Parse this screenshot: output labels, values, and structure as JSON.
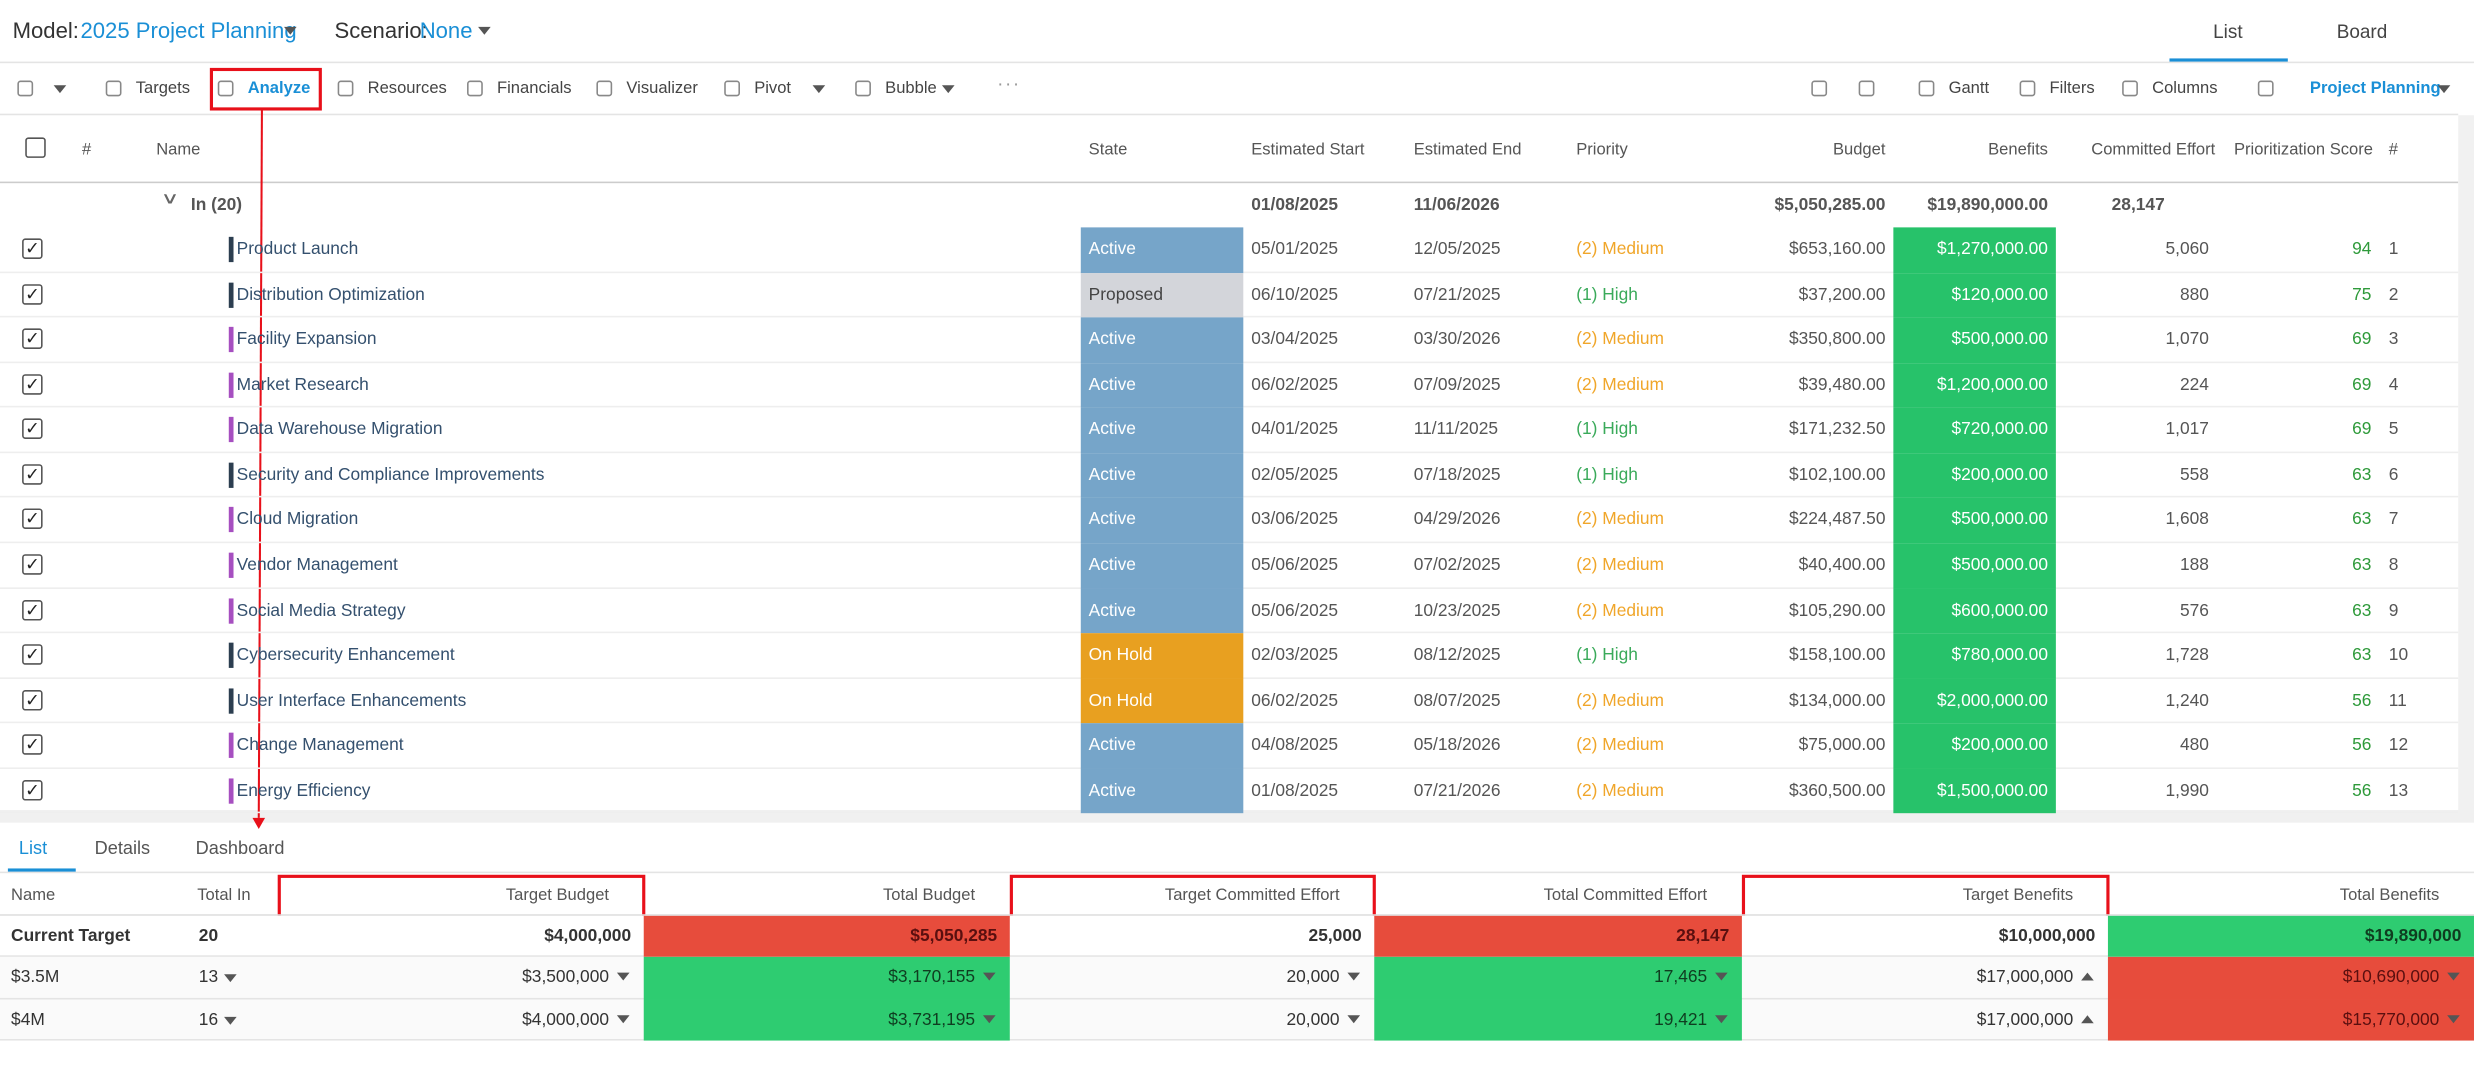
{
  "header": {
    "model_label": "Model:",
    "model": "2025 Project Planning",
    "scenario_label": "Scenario:",
    "scenario": "None",
    "views": [
      "List",
      "Board"
    ]
  },
  "toolbar": {
    "items": [
      "Targets",
      "Analyze",
      "Resources",
      "Financials",
      "Visualizer",
      "Pivot",
      "Bubble"
    ],
    "right_items": [
      "Gantt",
      "Filters",
      "Columns"
    ],
    "profile": "Project Planning"
  },
  "grid": {
    "columns": [
      "#",
      "Name",
      "State",
      "Estimated Start",
      "Estimated End",
      "Priority",
      "Budget",
      "Benefits",
      "Committed Effort",
      "Prioritization Score",
      "#"
    ],
    "group": {
      "label": "In (20)",
      "start": "01/08/2025",
      "end": "11/06/2026",
      "budget": "$5,050,285.00",
      "benefits": "$19,890,000.00",
      "effort": "28,147"
    },
    "rows": [
      {
        "name": "Product Launch",
        "state": "Active",
        "start": "05/01/2025",
        "end": "12/05/2025",
        "priority": "(2) Medium",
        "budget": "$653,160.00",
        "benefits": "$1,270,000.00",
        "effort": "5,060",
        "score": 94,
        "index": 1,
        "bar": "#2c3e50",
        "state_color": "#76a5c9",
        "priority_color": "#f0a62a"
      },
      {
        "name": "Distribution Optimization",
        "state": "Proposed",
        "start": "06/10/2025",
        "end": "07/21/2025",
        "priority": "(1) High",
        "budget": "$37,200.00",
        "benefits": "$120,000.00",
        "effort": "880",
        "score": 75,
        "index": 2,
        "bar": "#2c3e50",
        "state_color": "#d3d5da",
        "priority_color": "#3aaa5a"
      },
      {
        "name": "Facility Expansion",
        "state": "Active",
        "start": "03/04/2025",
        "end": "03/30/2026",
        "priority": "(2) Medium",
        "budget": "$350,800.00",
        "benefits": "$500,000.00",
        "effort": "1,070",
        "score": 69,
        "index": 3,
        "bar": "#a64fc0",
        "state_color": "#76a5c9",
        "priority_color": "#f0a62a"
      },
      {
        "name": "Market Research",
        "state": "Active",
        "start": "06/02/2025",
        "end": "07/09/2025",
        "priority": "(2) Medium",
        "budget": "$39,480.00",
        "benefits": "$1,200,000.00",
        "effort": "224",
        "score": 69,
        "index": 4,
        "bar": "#a64fc0",
        "state_color": "#76a5c9",
        "priority_color": "#f0a62a"
      },
      {
        "name": "Data Warehouse Migration",
        "state": "Active",
        "start": "04/01/2025",
        "end": "11/11/2025",
        "priority": "(1) High",
        "budget": "$171,232.50",
        "benefits": "$720,000.00",
        "effort": "1,017",
        "score": 69,
        "index": 5,
        "bar": "#a64fc0",
        "state_color": "#76a5c9",
        "priority_color": "#3aaa5a"
      },
      {
        "name": "Security and Compliance Improvements",
        "state": "Active",
        "start": "02/05/2025",
        "end": "07/18/2025",
        "priority": "(1) High",
        "budget": "$102,100.00",
        "benefits": "$200,000.00",
        "effort": "558",
        "score": 63,
        "index": 6,
        "bar": "#2c3e50",
        "state_color": "#76a5c9",
        "priority_color": "#3aaa5a"
      },
      {
        "name": "Cloud Migration",
        "state": "Active",
        "start": "03/06/2025",
        "end": "04/29/2026",
        "priority": "(2) Medium",
        "budget": "$224,487.50",
        "benefits": "$500,000.00",
        "effort": "1,608",
        "score": 63,
        "index": 7,
        "bar": "#a64fc0",
        "state_color": "#76a5c9",
        "priority_color": "#f0a62a"
      },
      {
        "name": "Vendor Management",
        "state": "Active",
        "start": "05/06/2025",
        "end": "07/02/2025",
        "priority": "(2) Medium",
        "budget": "$40,400.00",
        "benefits": "$500,000.00",
        "effort": "188",
        "score": 63,
        "index": 8,
        "bar": "#a64fc0",
        "state_color": "#76a5c9",
        "priority_color": "#f0a62a"
      },
      {
        "name": "Social Media Strategy",
        "state": "Active",
        "start": "05/06/2025",
        "end": "10/23/2025",
        "priority": "(2) Medium",
        "budget": "$105,290.00",
        "benefits": "$600,000.00",
        "effort": "576",
        "score": 63,
        "index": 9,
        "bar": "#a64fc0",
        "state_color": "#76a5c9",
        "priority_color": "#f0a62a"
      },
      {
        "name": "Cybersecurity Enhancement",
        "state": "On Hold",
        "start": "02/03/2025",
        "end": "08/12/2025",
        "priority": "(1) High",
        "budget": "$158,100.00",
        "benefits": "$780,000.00",
        "effort": "1,728",
        "score": 63,
        "index": 10,
        "bar": "#2c3e50",
        "state_color": "#e8a020",
        "priority_color": "#3aaa5a"
      },
      {
        "name": "User Interface Enhancements",
        "state": "On Hold",
        "start": "06/02/2025",
        "end": "08/07/2025",
        "priority": "(2) Medium",
        "budget": "$134,000.00",
        "benefits": "$2,000,000.00",
        "effort": "1,240",
        "score": 56,
        "index": 11,
        "bar": "#2c3e50",
        "state_color": "#e8a020",
        "priority_color": "#f0a62a"
      },
      {
        "name": "Change Management",
        "state": "Active",
        "start": "04/08/2025",
        "end": "05/18/2026",
        "priority": "(2) Medium",
        "budget": "$75,000.00",
        "benefits": "$200,000.00",
        "effort": "480",
        "score": 56,
        "index": 12,
        "bar": "#a64fc0",
        "state_color": "#76a5c9",
        "priority_color": "#f0a62a"
      },
      {
        "name": "Energy Efficiency",
        "state": "Active",
        "start": "01/08/2025",
        "end": "07/21/2026",
        "priority": "(2) Medium",
        "budget": "$360,500.00",
        "benefits": "$1,500,000.00",
        "effort": "1,990",
        "score": 56,
        "index": 13,
        "bar": "#a64fc0",
        "state_color": "#76a5c9",
        "priority_color": "#f0a62a"
      }
    ]
  },
  "panel": {
    "tabs": [
      "List",
      "Details",
      "Dashboard"
    ],
    "columns": [
      "Name",
      "Total In",
      "Target Budget",
      "Total Budget",
      "Target Committed Effort",
      "Total Committed Effort",
      "Target Benefits",
      "Total Benefits"
    ],
    "rows": [
      {
        "cells": [
          "Current Target",
          "20",
          "$4,000,000",
          "$5,050,285",
          "25,000",
          "28,147",
          "$10,000,000",
          "$19,890,000"
        ],
        "fills": {
          "3": "#e74c3c",
          "5": "#e74c3c",
          "7": "#2ecc71"
        }
      },
      {
        "cells": [
          "$3.5M",
          "13",
          "$3,500,000",
          "$3,170,155",
          "20,000",
          "17,465",
          "$17,000,000",
          "$10,690,000"
        ],
        "fills": {
          "3": "#2ecc71",
          "5": "#2ecc71",
          "7": "#e74c3c"
        }
      },
      {
        "cells": [
          "$4M",
          "16",
          "$4,000,000",
          "$3,731,195",
          "20,000",
          "19,421",
          "$17,000,000",
          "$15,770,000"
        ],
        "fills": {
          "3": "#2ecc71",
          "5": "#2ecc71",
          "7": "#e74c3c"
        }
      }
    ]
  }
}
